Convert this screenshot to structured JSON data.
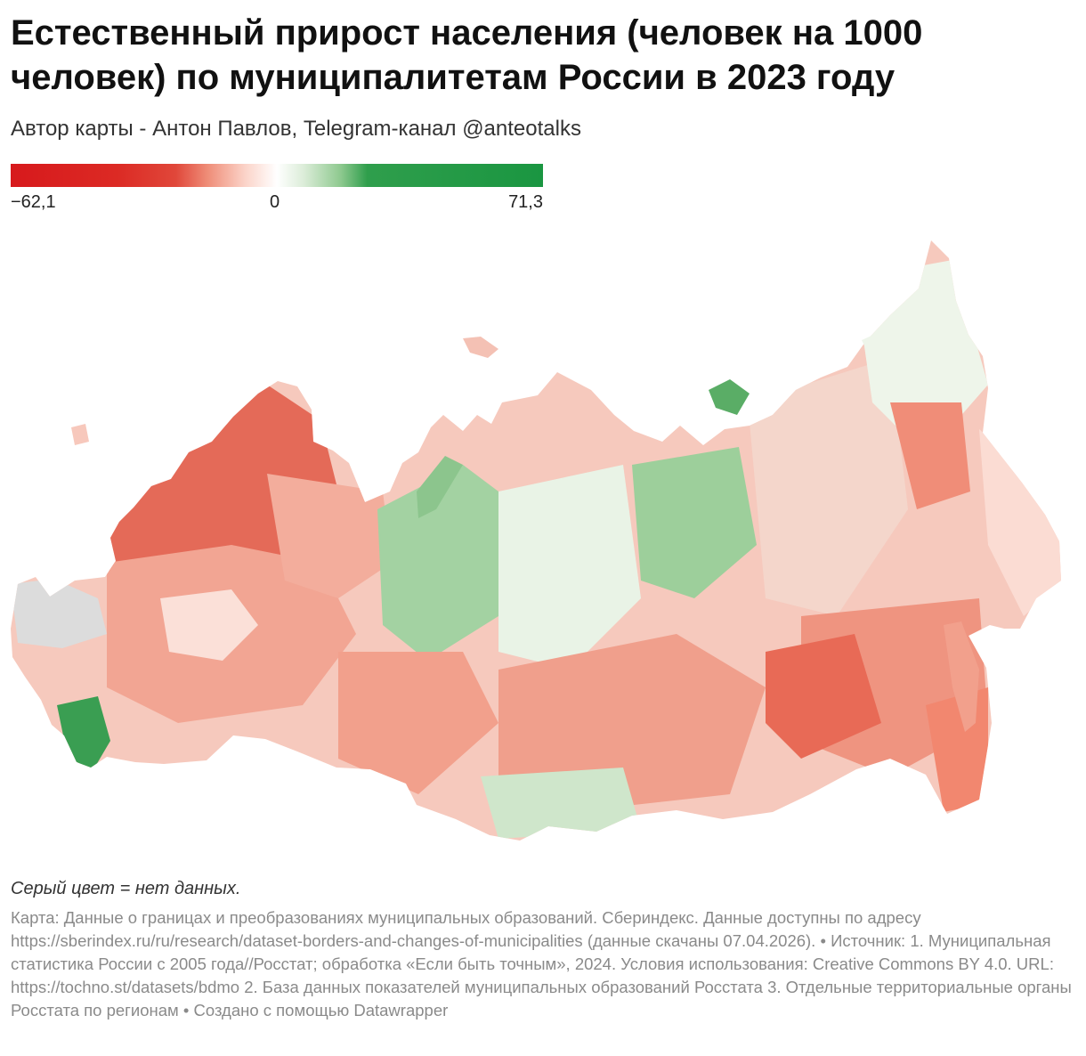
{
  "header": {
    "title": "Естественный прирост населения (человек на 1000 человек) по муниципалитетам России в 2023 году",
    "subtitle": "Автор карты - Антон Павлов, Telegram-канал @anteotalks"
  },
  "legend": {
    "min_label": "−62,1",
    "mid_label": "0",
    "max_label": "71,3",
    "min_value": -62.1,
    "mid_value": 0,
    "max_value": 71.3,
    "scale": "diverging",
    "negative_color": "#d7191c",
    "neutral_color": "#ffffff",
    "positive_color": "#1a9641"
  },
  "map": {
    "subject": "Russia municipalities",
    "no_data_color": "#dddddd",
    "boundary_color": "#ffffff"
  },
  "notes": {
    "no_data": "Серый цвет = нет данных."
  },
  "footer": {
    "text": "Карта: Данные о границах и преобразованиях муниципальных образований. Сбериндекс. Данные доступны по адресу https://sberindex.ru/ru/research/dataset-borders-and-changes-of-municipalities (данные скачаны 07.04.2026). • Источник: 1. Муниципальная статистика России с 2005 года//Росстат; обработка «Если быть точным», 2024. Условия использования: Creative Commons BY 4.0. URL: https://tochno.st/datasets/bdmo 2. База данных показателей муниципальных образований Росстата 3. Отдельные территориальные органы Росстата по регионам • Создано с помощью Datawrapper"
  }
}
